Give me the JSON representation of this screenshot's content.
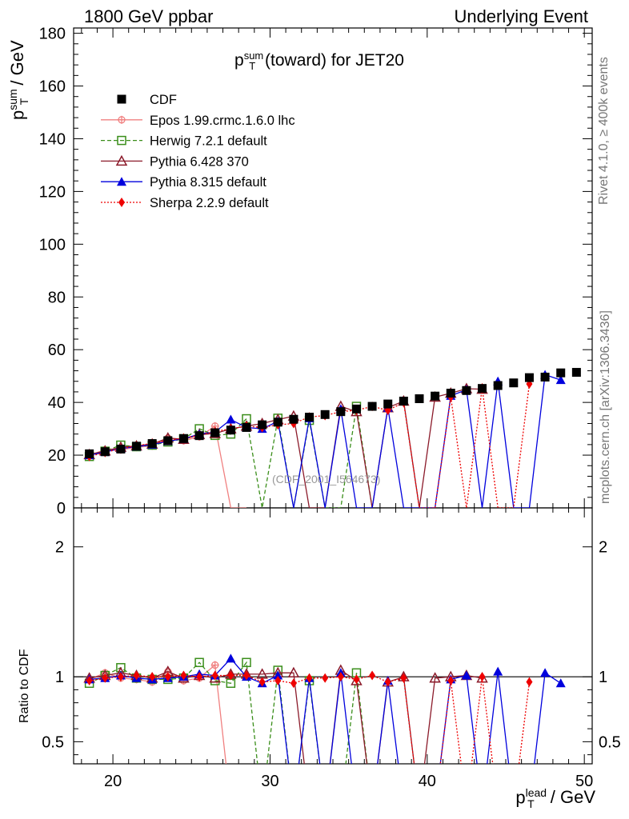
{
  "header": {
    "left": "1800 GeV ppbar",
    "right": "Underlying Event"
  },
  "side_labels": {
    "rivet": "Rivet 4.1.0, ≥ 400k events",
    "mcplots": "mcplots.cern.ch [arXiv:1306.3436]"
  },
  "analysis_id": "(CDF_2001_I564673)",
  "axes": {
    "y_main_p": "p",
    "y_main_sup": "sum",
    "y_main_sub": "T",
    "y_main_unit": " / GeV",
    "x_p": "p",
    "x_sup": "lead",
    "x_sub": "T",
    "x_unit": " / GeV",
    "y_ratio": "Ratio to CDF"
  },
  "plot_title": {
    "p": "p",
    "sup": "sum",
    "sub": "T",
    "rest": " (toward) for JET20"
  },
  "chart_data": {
    "type": "scatter",
    "title": "p_T^sum (toward) for JET20",
    "xlabel": "p_T^lead / GeV",
    "ylabel": "p_T^sum / GeV",
    "xlim": [
      17.5,
      50.5
    ],
    "ylim": [
      0,
      182
    ],
    "ratio_ylim": [
      0.33,
      2.3
    ],
    "ratio_ylabel": "Ratio to CDF",
    "x_ticks": [
      20,
      30,
      40,
      50
    ],
    "y_ticks": [
      0,
      20,
      40,
      60,
      80,
      100,
      120,
      140,
      160,
      180
    ],
    "ratio_ticks": [
      0.5,
      1,
      2
    ],
    "series": [
      {
        "name": "CDF",
        "color": "#000000",
        "marker": "square-filled",
        "line": "none",
        "x": [
          18.5,
          19.5,
          20.5,
          21.5,
          22.5,
          23.5,
          24.5,
          25.5,
          26.5,
          27.5,
          28.5,
          29.5,
          30.5,
          31.5,
          32.5,
          33.5,
          34.5,
          35.5,
          36.5,
          37.5,
          38.5,
          39.5,
          40.5,
          41.5,
          42.5,
          43.5,
          44.5,
          45.5,
          46.5,
          47.5,
          48.5,
          49.5
        ],
        "y": [
          20.5,
          21.3,
          22.3,
          23.4,
          24.4,
          25.5,
          26.3,
          27.4,
          28.5,
          29.5,
          30.5,
          31.5,
          32.5,
          33.6,
          34.4,
          35.4,
          36.5,
          37.5,
          38.5,
          39.4,
          40.5,
          41.4,
          42.4,
          43.5,
          44.5,
          45.3,
          46.4,
          47.4,
          49.4,
          49.6,
          51.2,
          51.4
        ],
        "ratio": [
          1,
          1,
          1,
          1,
          1,
          1,
          1,
          1,
          1,
          1,
          1,
          1,
          1,
          1,
          1,
          1,
          1,
          1,
          1,
          1,
          1,
          1,
          1,
          1,
          1,
          1,
          1,
          1,
          1,
          1,
          1,
          1
        ]
      },
      {
        "name": "Epos 1.99.crmc.1.6.0 lhc",
        "color": "#f08080",
        "marker": "cross-circle",
        "line": "solid",
        "x": [
          18.5,
          19.5,
          20.5,
          21.5,
          22.5,
          23.5,
          24.5,
          25.5,
          26.5,
          27.5,
          28.5
        ],
        "y": [
          20.0,
          22.0,
          22.0,
          23.0,
          23.5,
          26.5,
          25.5,
          27.0,
          31.0,
          0,
          0
        ],
        "ratio": [
          0.98,
          1.03,
          0.99,
          0.98,
          0.96,
          1.04,
          0.97,
          0.99,
          1.09,
          0,
          0
        ]
      },
      {
        "name": "Herwig 7.2.1 default",
        "color": "#3a8e1a",
        "marker": "open-square",
        "line": "dashed",
        "x": [
          18.5,
          19.5,
          20.5,
          21.5,
          22.5,
          23.5,
          24.5,
          25.5,
          26.5,
          27.5,
          28.5,
          29.5,
          30.5,
          31.5,
          32.5,
          33.5,
          34.5,
          35.5,
          36.5
        ],
        "y": [
          19.5,
          21.5,
          23.8,
          23.2,
          23.8,
          25.0,
          26.2,
          30.0,
          27.5,
          28.0,
          33.8,
          0,
          34.0,
          0,
          33.2,
          0,
          0,
          38.5,
          0
        ],
        "ratio": [
          0.95,
          1.01,
          1.07,
          0.99,
          0.98,
          0.98,
          0.99,
          1.11,
          0.97,
          0.95,
          1.11,
          0,
          1.05,
          0,
          0.97,
          0,
          0,
          1.03,
          0
        ]
      },
      {
        "name": "Pythia 6.428 370",
        "color": "#8b1a2a",
        "marker": "open-triangle",
        "line": "solid",
        "x": [
          18.5,
          19.5,
          20.5,
          21.5,
          22.5,
          23.5,
          24.5,
          25.5,
          26.5,
          27.5,
          28.5,
          29.5,
          30.5,
          31.5,
          32.5,
          33.5,
          34.5,
          35.5,
          36.5,
          37.5,
          38.5,
          39.5,
          40.5,
          41.5,
          42.5,
          43.5
        ],
        "y": [
          20.2,
          21.6,
          23.0,
          23.5,
          24.2,
          26.5,
          26.0,
          27.8,
          28.2,
          30.0,
          31.0,
          32.0,
          33.5,
          34.8,
          0,
          0,
          38.5,
          36.5,
          0,
          38.0,
          40.5,
          0,
          42.0,
          43.5,
          45.2,
          45.0
        ],
        "ratio": [
          0.99,
          1.01,
          1.03,
          1.01,
          0.99,
          1.04,
          0.99,
          1.01,
          0.99,
          1.02,
          1.02,
          1.02,
          1.03,
          1.03,
          0,
          0,
          1.05,
          0.97,
          0,
          0.96,
          1.0,
          0,
          0.99,
          1.0,
          1.01,
          0.99
        ]
      },
      {
        "name": "Pythia 8.315 default",
        "color": "#0000dd",
        "marker": "filled-triangle",
        "line": "solid",
        "x": [
          18.5,
          19.5,
          20.5,
          21.5,
          22.5,
          23.5,
          24.5,
          25.5,
          26.5,
          27.5,
          28.5,
          29.5,
          30.5,
          31.5,
          32.5,
          33.5,
          34.5,
          35.5,
          36.5,
          37.5,
          38.5,
          39.5,
          40.5,
          41.5,
          42.5,
          43.5,
          44.5,
          45.5,
          46.5,
          47.5,
          48.5
        ],
        "y": [
          20.0,
          21.2,
          22.5,
          23.2,
          24.0,
          25.3,
          26.2,
          28.0,
          28.8,
          33.5,
          30.5,
          30.0,
          32.8,
          0,
          34.0,
          0,
          37.5,
          0,
          0,
          38.0,
          0,
          0,
          0,
          42.5,
          44.8,
          0,
          48.0,
          0,
          0,
          50.5,
          48.5
        ],
        "ratio": [
          0.98,
          0.99,
          1.01,
          0.99,
          0.98,
          0.99,
          1.0,
          1.02,
          1.01,
          1.14,
          1.0,
          0.95,
          1.01,
          0,
          0.99,
          0,
          1.03,
          0,
          0,
          0.97,
          0,
          0,
          0,
          0.98,
          1.01,
          0,
          1.04,
          0,
          0,
          1.03,
          0.95
        ]
      },
      {
        "name": "Sherpa 2.2.9 default",
        "color": "#ee0000",
        "marker": "filled-diamond",
        "line": "dotted",
        "x": [
          18.5,
          19.5,
          20.5,
          21.5,
          22.5,
          23.5,
          24.5,
          25.5,
          26.5,
          27.5,
          28.5,
          29.5,
          30.5,
          31.5,
          32.5,
          33.5,
          34.5,
          35.5,
          36.5,
          37.5,
          38.5,
          39.5,
          40.5,
          41.5,
          42.5,
          43.5,
          44.5,
          45.5,
          46.5
        ],
        "y": [
          19.5,
          21.0,
          22.5,
          23.5,
          24.5,
          25.5,
          26.5,
          27.5,
          29.0,
          30.0,
          31.0,
          30.5,
          31.5,
          32.0,
          34.5,
          35.0,
          36.5,
          37.0,
          38.5,
          37.0,
          40.0,
          0,
          0,
          42.0,
          0,
          45.5,
          0,
          0,
          47.0
        ],
        "ratio": [
          0.97,
          0.99,
          1.0,
          1.01,
          1.0,
          1.0,
          1.01,
          1.0,
          1.01,
          1.01,
          1.01,
          0.96,
          0.97,
          0.95,
          0.99,
          0.99,
          1.0,
          0.98,
          1.01,
          0.96,
          0.99,
          0,
          0,
          0.97,
          0,
          1.0,
          0,
          0,
          0.96
        ]
      }
    ]
  }
}
